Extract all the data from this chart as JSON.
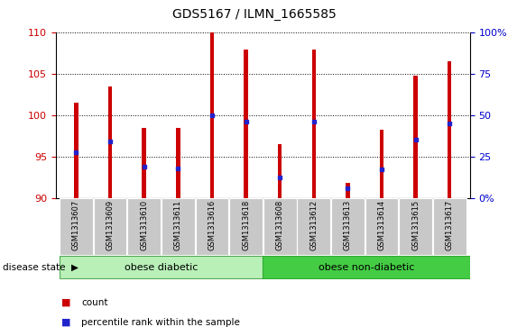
{
  "title": "GDS5167 / ILMN_1665585",
  "samples": [
    "GSM1313607",
    "GSM1313609",
    "GSM1313610",
    "GSM1313611",
    "GSM1313616",
    "GSM1313618",
    "GSM1313608",
    "GSM1313612",
    "GSM1313613",
    "GSM1313614",
    "GSM1313615",
    "GSM1313617"
  ],
  "bar_bottom": 90,
  "bar_top": [
    101.5,
    103.5,
    98.5,
    98.5,
    110.0,
    108.0,
    96.5,
    108.0,
    91.8,
    98.2,
    104.8,
    106.5
  ],
  "blue_pos": [
    95.5,
    96.8,
    93.8,
    93.6,
    100.0,
    99.2,
    92.5,
    99.2,
    91.2,
    93.5,
    97.0,
    99.0
  ],
  "ylim_left": [
    90,
    110
  ],
  "ylim_right": [
    0,
    100
  ],
  "yticks_left": [
    90,
    95,
    100,
    105,
    110
  ],
  "yticks_right": [
    0,
    25,
    50,
    75,
    100
  ],
  "ytick_labels_right": [
    "0%",
    "25",
    "50",
    "75",
    "100%"
  ],
  "bar_color": "#cc0000",
  "blue_color": "#2222cc",
  "group1_label": "obese diabetic",
  "group2_label": "obese non-diabetic",
  "group1_count": 6,
  "group2_count": 6,
  "group_box_color_light": "#b8f0b8",
  "group_box_color_dark": "#44cc44",
  "left_axis_color": "#cc0000",
  "right_axis_color": "#0000cc",
  "tick_label_bg": "#c8c8c8",
  "bar_width": 0.12
}
